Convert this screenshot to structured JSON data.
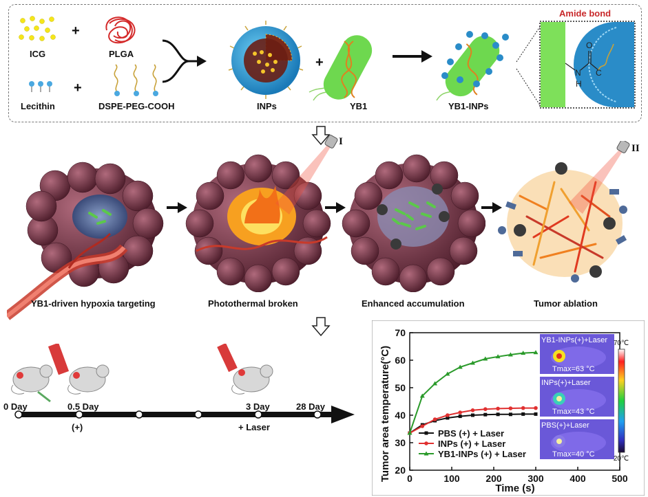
{
  "synthesis": {
    "icg": "ICG",
    "plga": "PLGA",
    "lecithin": "Lecithin",
    "dspe": "DSPE-PEG-COOH",
    "inps": "INPs",
    "yb1": "YB1",
    "yb1_inps": "YB1-INPs",
    "amide": "Amide bond",
    "plus": "+"
  },
  "process": {
    "step1": "YB1-driven hypoxia targeting",
    "step2": "Photothermal broken",
    "step3": "Enhanced accumulation",
    "step4": "Tumor ablation",
    "laser1": "I",
    "laser2": "II"
  },
  "timeline": {
    "day0": "0 Day",
    "day05": "0.5 Day",
    "day3": "3 Day",
    "day28": "28 Day",
    "plus_label": "(+)",
    "laser_label": "+ Laser"
  },
  "colors": {
    "tumor": "#7a3a4c",
    "bacteria": "#5cc84a",
    "laser": "#f2503c",
    "pbs": "#111111",
    "inps": "#e03030",
    "yb1_inps": "#2a9a2a"
  },
  "thermal": [
    {
      "title": "YB1-INPs(+)+Laser",
      "tmax": "Tmax=63 °C"
    },
    {
      "title": "INPs(+)+Laser",
      "tmax": "Tmax=43 °C"
    },
    {
      "title": "PBS(+)+Laser",
      "tmax": "Tmax=40 °C"
    }
  ],
  "colorbar": {
    "top": "70℃",
    "bottom": "20℃"
  },
  "chart_data": {
    "type": "line",
    "xlabel": "Time (s)",
    "ylabel": "Tumor area temperature(°C)",
    "xlim": [
      0,
      500
    ],
    "ylim": [
      20,
      70
    ],
    "xticks": [
      0,
      100,
      200,
      300,
      400,
      500
    ],
    "yticks": [
      20,
      30,
      40,
      50,
      60,
      70
    ],
    "x": [
      0,
      30,
      60,
      90,
      120,
      150,
      180,
      210,
      240,
      270,
      300
    ],
    "legend_position": "bottom-left",
    "series": [
      {
        "name": "PBS (+) + Laser",
        "color": "#111111",
        "marker": "square",
        "values": [
          33.5,
          36.5,
          38.0,
          39.0,
          39.6,
          40.0,
          40.2,
          40.3,
          40.3,
          40.4,
          40.4
        ]
      },
      {
        "name": "INPs (+) + Laser",
        "color": "#e03030",
        "marker": "circle",
        "values": [
          33.5,
          36.0,
          38.5,
          40.0,
          41.0,
          41.8,
          42.2,
          42.4,
          42.5,
          42.6,
          42.6
        ]
      },
      {
        "name": "YB1-INPs (+) + Laser",
        "color": "#2a9a2a",
        "marker": "triangle",
        "values": [
          33.5,
          47.0,
          51.5,
          55.0,
          57.5,
          59.0,
          60.5,
          61.3,
          62.0,
          62.6,
          62.8
        ]
      }
    ]
  }
}
